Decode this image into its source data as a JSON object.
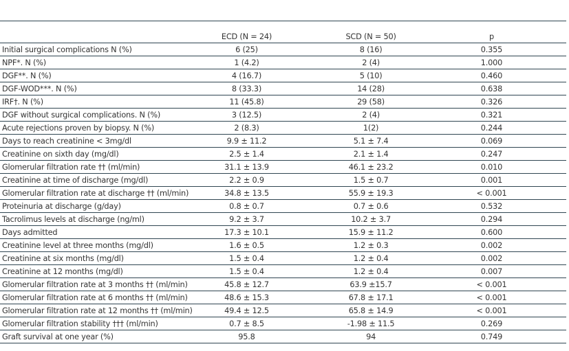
{
  "headers": [
    "",
    "ECD (N = 24)",
    "SCD (N = 50)",
    "p"
  ],
  "rows": [
    [
      "Initial surgical complications N (%)",
      "6 (25)",
      "8 (16)",
      "0.355"
    ],
    [
      "NPF*. N (%)",
      "1 (4.2)",
      "2 (4)",
      "1.000"
    ],
    [
      "DGF**. N (%)",
      "4 (16.7)",
      "5 (10)",
      "0.460"
    ],
    [
      "DGF-WOD***. N (%)",
      "8 (33.3)",
      "14 (28)",
      "0.638"
    ],
    [
      "IRF†. N (%)",
      "11 (45.8)",
      "29 (58)",
      "0.326"
    ],
    [
      "DGF without surgical complications. N (%)",
      "3 (12.5)",
      "2 (4)",
      "0.321"
    ],
    [
      "Acute rejections proven by biopsy. N (%)",
      "2 (8.3)",
      "1(2)",
      "0.244"
    ],
    [
      "Days to reach creatinine < 3mg/dl",
      "9.9 ± 11.2",
      "5.1 ± 7.4",
      "0.069"
    ],
    [
      "Creatinine on sixth day (mg/dl)",
      "2.5 ± 1.4",
      "2.1 ± 1.4",
      "0.247"
    ],
    [
      "Glomerular filtration rate †† (ml/min)",
      "31.1 ± 13.9",
      "46.1 ± 23.2",
      "0.010"
    ],
    [
      "Creatinine at time of discharge (mg/dl)",
      "2.2 ± 0.9",
      "1.5 ± 0.7",
      "0.001"
    ],
    [
      "Glomerular filtration rate at discharge †† (ml/min)",
      "34.8 ± 13.5",
      "55.9 ± 19.3",
      "< 0.001"
    ],
    [
      "Proteinuria at discharge (g/day)",
      "0.8 ± 0.7",
      "0.7 ± 0.6",
      "0.532"
    ],
    [
      "Tacrolimus levels at discharge (ng/ml)",
      "9.2 ± 3.7",
      "10.2 ± 3.7",
      "0.294"
    ],
    [
      "Days admitted",
      "17.3 ± 10.1",
      "15.9 ± 11.2",
      "0.600"
    ],
    [
      "Creatinine level at three months (mg/dl)",
      "1.6 ± 0.5",
      "1.2 ± 0.3",
      "0.002"
    ],
    [
      "Creatinine at six months (mg/dl)",
      "1.5 ± 0.4",
      "1.2 ± 0.4",
      "0.002"
    ],
    [
      "Creatinine at 12 months (mg/dl)",
      "1.5 ± 0.4",
      "1.2 ± 0.4",
      "0.007"
    ],
    [
      "Glomerular filtration rate at 3 months †† (ml/min)",
      "45.8 ± 12.7",
      "63.9 ±15.7",
      "< 0.001"
    ],
    [
      "Glomerular filtration rate at 6 months †† (ml/min)",
      "48.6 ± 15.3",
      "67.8 ± 17.1",
      "< 0.001"
    ],
    [
      "Glomerular filtration rate at 12 months †† (ml/min)",
      "49.4 ± 12.5",
      "65.8 ± 14.9",
      "< 0.001"
    ],
    [
      "Glomerular filtration stability ††† (ml/min)",
      "0.7 ± 8.5",
      "-1.98 ± 11.5",
      "0.269"
    ],
    [
      "Graft survival at one year (%)",
      "95.8",
      "94",
      "0.749"
    ]
  ],
  "colors": {
    "rule": "#2e4450",
    "text": "#333333"
  }
}
